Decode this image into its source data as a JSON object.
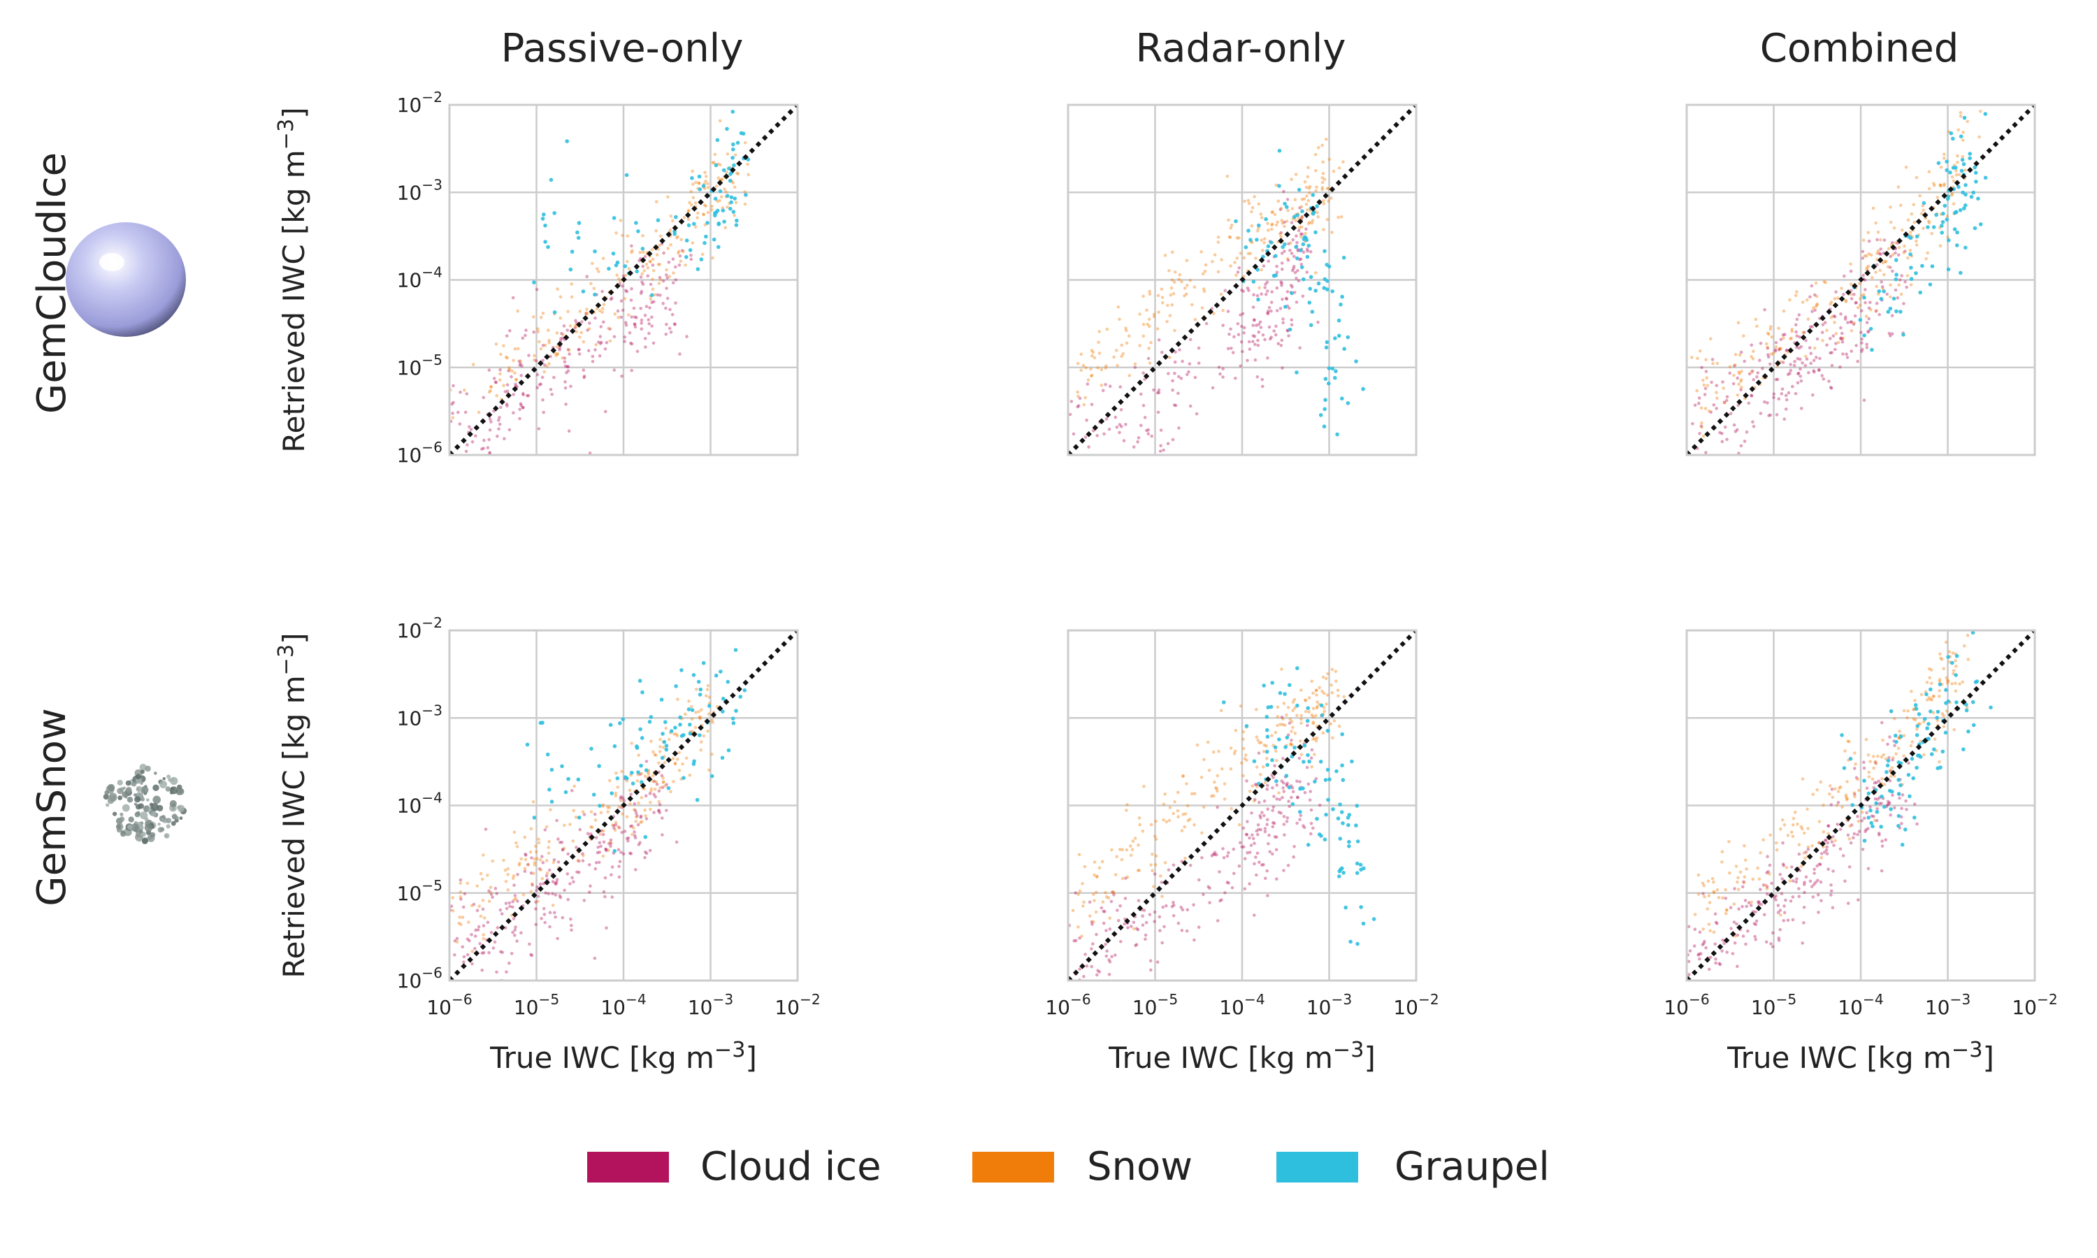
{
  "figure": {
    "column_titles": [
      "Passive-only",
      "Radar-only",
      "Combined"
    ],
    "row_labels": [
      "GemCloudIce",
      "GemSnow"
    ],
    "row_icons": [
      "sphere-icon",
      "snow-aggregate-icon"
    ]
  },
  "legend": {
    "items": [
      {
        "label": "Cloud ice",
        "color": "#b3135c"
      },
      {
        "label": "Snow",
        "color": "#f07c0a"
      },
      {
        "label": "Graupel",
        "color": "#2fbfde"
      }
    ]
  },
  "chart_data": [
    {
      "type": "scatter",
      "row": "GemCloudIce",
      "title": "Passive-only",
      "xlabel": "True IWC [kg m^-3]",
      "ylabel": "Retrieved IWC [kg  m^-3]",
      "xscale": "log",
      "yscale": "log",
      "xlim": [
        1e-06,
        0.01
      ],
      "ylim": [
        1e-06,
        0.01
      ],
      "grid": true,
      "reference_line": "1:1",
      "series": [
        {
          "name": "Cloud ice",
          "x": [
            1e-06,
            3e-06,
            1e-05,
            3e-05,
            0.0001,
            0.0002,
            0.0004
          ],
          "y": [
            2e-06,
            3e-06,
            8e-06,
            1.5e-05,
            3e-05,
            6e-05,
            0.0001
          ]
        },
        {
          "name": "Snow",
          "x": [
            1e-06,
            1e-05,
            0.0001,
            0.0003,
            0.001,
            0.002
          ],
          "y": [
            5e-06,
            1.5e-05,
            0.0001,
            0.00025,
            0.0008,
            0.002
          ]
        },
        {
          "name": "Graupel",
          "x": [
            1e-05,
            0.0001,
            0.0005,
            0.001,
            0.0015,
            0.002
          ],
          "y": [
            0.0005,
            0.0002,
            0.0003,
            0.0007,
            0.0015,
            0.001
          ]
        }
      ]
    },
    {
      "type": "scatter",
      "row": "GemCloudIce",
      "title": "Radar-only",
      "xlabel": "True IWC [kg m^-3]",
      "ylabel": "Retrieved IWC [kg  m^-3]",
      "xscale": "log",
      "yscale": "log",
      "xlim": [
        1e-06,
        0.01
      ],
      "ylim": [
        1e-06,
        0.01
      ],
      "grid": true,
      "reference_line": "1:1",
      "series": [
        {
          "name": "Cloud ice",
          "x": [
            1e-06,
            1e-05,
            0.0001,
            0.0003,
            0.0005
          ],
          "y": [
            1.5e-06,
            4e-06,
            2.5e-05,
            6e-05,
            0.0003
          ]
        },
        {
          "name": "Snow",
          "x": [
            1e-06,
            1e-05,
            0.0001,
            0.0005,
            0.001
          ],
          "y": [
            5e-06,
            4e-05,
            0.0003,
            0.0007,
            0.001
          ]
        },
        {
          "name": "Graupel",
          "x": [
            0.0001,
            0.0003,
            0.0005,
            0.001,
            0.0015
          ],
          "y": [
            0.0001,
            0.0005,
            0.0004,
            2e-05,
            5e-06
          ]
        }
      ]
    },
    {
      "type": "scatter",
      "row": "GemCloudIce",
      "title": "Combined",
      "xlabel": "True IWC [kg m^-3]",
      "ylabel": "Retrieved IWC [kg  m^-3]",
      "xscale": "log",
      "yscale": "log",
      "xlim": [
        1e-06,
        0.01
      ],
      "ylim": [
        1e-06,
        0.01
      ],
      "grid": true,
      "reference_line": "1:1",
      "series": [
        {
          "name": "Cloud ice",
          "x": [
            1e-06,
            1e-05,
            3e-05,
            0.0001,
            0.0003
          ],
          "y": [
            1.5e-06,
            7e-06,
            1.5e-05,
            4e-05,
            0.0002
          ]
        },
        {
          "name": "Snow",
          "x": [
            1e-06,
            1e-05,
            0.0001,
            0.0005,
            0.0015
          ],
          "y": [
            4e-06,
            2e-05,
            8e-05,
            0.0005,
            0.004
          ]
        },
        {
          "name": "Graupel",
          "x": [
            0.0001,
            0.0003,
            0.001,
            0.0015,
            0.002
          ],
          "y": [
            5e-05,
            0.0001,
            0.001,
            0.003,
            0.0005
          ]
        }
      ]
    },
    {
      "type": "scatter",
      "row": "GemSnow",
      "title": "Passive-only",
      "xlabel": "True IWC [kg m^-3]",
      "ylabel": "Retrieved IWC [kg  m^-3]",
      "xscale": "log",
      "yscale": "log",
      "xlim": [
        1e-06,
        0.01
      ],
      "ylim": [
        1e-06,
        0.01
      ],
      "grid": true,
      "reference_line": "1:1",
      "series": [
        {
          "name": "Cloud ice",
          "x": [
            1e-06,
            3e-06,
            1e-05,
            3e-05,
            0.0001,
            0.0003
          ],
          "y": [
            2e-06,
            4e-06,
            1e-05,
            2e-05,
            4e-05,
            0.0001
          ]
        },
        {
          "name": "Snow",
          "x": [
            1e-06,
            1e-05,
            0.0001,
            0.0003,
            0.001
          ],
          "y": [
            6e-06,
            2e-05,
            0.0001,
            0.0003,
            0.0015
          ]
        },
        {
          "name": "Graupel",
          "x": [
            1e-05,
            0.0001,
            0.0003,
            0.001,
            0.002
          ],
          "y": [
            0.0003,
            0.0002,
            0.0004,
            0.001,
            0.0015
          ]
        }
      ]
    },
    {
      "type": "scatter",
      "row": "GemSnow",
      "title": "Radar-only",
      "xlabel": "True IWC [kg m^-3]",
      "ylabel": "Retrieved IWC [kg  m^-3]",
      "xscale": "log",
      "yscale": "log",
      "xlim": [
        1e-06,
        0.01
      ],
      "ylim": [
        1e-06,
        0.01
      ],
      "grid": true,
      "reference_line": "1:1",
      "series": [
        {
          "name": "Cloud ice",
          "x": [
            1e-06,
            1e-05,
            0.0001,
            0.0003,
            0.0005
          ],
          "y": [
            1.5e-06,
            5e-06,
            3e-05,
            8e-05,
            0.0003
          ]
        },
        {
          "name": "Snow",
          "x": [
            1e-06,
            1e-05,
            0.0001,
            0.0005,
            0.001
          ],
          "y": [
            6e-06,
            5e-05,
            0.0004,
            0.001,
            0.0015
          ]
        },
        {
          "name": "Graupel",
          "x": [
            0.0001,
            0.0003,
            0.001,
            0.0015,
            0.002
          ],
          "y": [
            0.0007,
            0.0006,
            0.0003,
            3e-05,
            5e-06
          ]
        }
      ]
    },
    {
      "type": "scatter",
      "row": "GemSnow",
      "title": "Combined",
      "xlabel": "True IWC [kg m^-3]",
      "ylabel": "Retrieved IWC [kg  m^-3]",
      "xscale": "log",
      "yscale": "log",
      "xlim": [
        1e-06,
        0.01
      ],
      "ylim": [
        1e-06,
        0.01
      ],
      "grid": true,
      "reference_line": "1:1",
      "series": [
        {
          "name": "Cloud ice",
          "x": [
            1e-06,
            1e-05,
            0.0001,
            0.0003
          ],
          "y": [
            1.5e-06,
            8e-06,
            6e-05,
            0.0002
          ]
        },
        {
          "name": "Snow",
          "x": [
            1e-06,
            1e-05,
            0.0001,
            0.0005,
            0.0015
          ],
          "y": [
            5e-06,
            3e-05,
            0.0002,
            0.001,
            0.005
          ]
        },
        {
          "name": "Graupel",
          "x": [
            0.0001,
            0.0003,
            0.001,
            0.002
          ],
          "y": [
            0.0001,
            0.0002,
            0.001,
            0.003
          ]
        }
      ]
    }
  ]
}
